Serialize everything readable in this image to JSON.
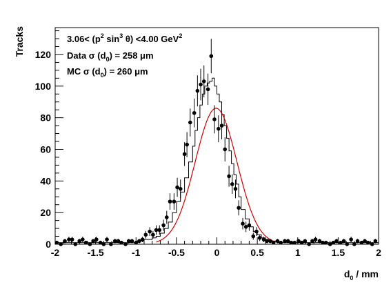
{
  "chart_data": {
    "type": "scatter",
    "xlabel": "d₀ / mm",
    "ylabel": "Tracks",
    "xlim": [
      -2,
      2
    ],
    "ylim": [
      0,
      137
    ],
    "x_ticks": [
      -2,
      -1.5,
      -1,
      -0.5,
      0,
      0.5,
      1,
      1.5,
      2
    ],
    "y_ticks": [
      0,
      20,
      40,
      60,
      80,
      100,
      120
    ],
    "annotations": [
      {
        "prefix": "3.06< (p",
        "sup1": "2",
        "mid": " sin",
        "sup2": "3",
        "suffix": " θ) <4.00 GeV",
        "sup3": "2"
      },
      {
        "prefix": "Data σ (d",
        "sub": "0",
        "suffix": ") = 258  μm"
      },
      {
        "prefix": "MC σ (d",
        "sub": "0",
        "suffix": ") = 260  μm"
      }
    ],
    "series": [
      {
        "role": "data points with error bars",
        "color": "#000000",
        "x": [
          -1.98,
          -1.93,
          -1.88,
          -1.83,
          -1.79,
          -1.75,
          -1.7,
          -1.66,
          -1.62,
          -1.57,
          -1.53,
          -1.49,
          -1.44,
          -1.4,
          -1.36,
          -1.31,
          -1.26,
          -1.22,
          -1.18,
          -1.13,
          -1.09,
          -1.05,
          -1.0,
          -0.96,
          -0.92,
          -0.88,
          -0.83,
          -0.79,
          -0.75,
          -0.71,
          -0.66,
          -0.62,
          -0.58,
          -0.53,
          -0.49,
          -0.45,
          -0.4,
          -0.37,
          -0.33,
          -0.28,
          -0.24,
          -0.2,
          -0.16,
          -0.11,
          -0.07,
          -0.03,
          0.02,
          0.06,
          0.1,
          0.15,
          0.19,
          0.23,
          0.27,
          0.32,
          0.36,
          0.4,
          0.45,
          0.49,
          0.53,
          0.58,
          0.62,
          0.66,
          0.7,
          0.75,
          0.79,
          0.84,
          0.88,
          0.92,
          0.96,
          1.01,
          1.05,
          1.09,
          1.14,
          1.18,
          1.22,
          1.27,
          1.31,
          1.35,
          1.4,
          1.44,
          1.48,
          1.53,
          1.57,
          1.61,
          1.66,
          1.7,
          1.74,
          1.79,
          1.83,
          1.87,
          1.92,
          1.96
        ],
        "y": [
          1,
          0,
          2,
          3,
          3,
          0,
          2,
          3,
          1,
          0,
          2,
          3,
          1,
          0,
          3,
          0,
          2,
          2,
          1,
          0,
          2,
          2,
          1,
          2,
          3,
          6,
          8,
          6,
          9,
          9,
          12,
          17,
          27,
          27,
          36,
          35,
          57,
          63,
          77,
          83,
          97,
          101,
          103,
          98,
          119,
          79,
          73,
          75,
          60,
          43,
          38,
          35,
          23,
          13,
          11,
          12,
          5,
          8,
          4,
          3,
          2,
          2,
          1,
          2,
          1,
          2,
          2,
          1,
          1,
          2,
          1,
          2,
          0,
          2,
          3,
          2,
          1,
          1,
          0,
          1,
          2,
          1,
          2,
          0,
          3,
          0,
          2,
          1,
          2,
          1,
          0,
          2
        ],
        "yerr": [
          1,
          0,
          1.4,
          1.7,
          1.7,
          0,
          1.4,
          1.7,
          1,
          0,
          1.4,
          1.7,
          1,
          0,
          1.7,
          0,
          1.4,
          1.4,
          1,
          0,
          1.4,
          1.4,
          1,
          1.4,
          1.7,
          2.4,
          2.8,
          2.4,
          3,
          3,
          3.5,
          4.1,
          5.2,
          5.2,
          6,
          5.9,
          7.5,
          7.9,
          8.8,
          9.1,
          9.8,
          10,
          10.1,
          9.9,
          10.9,
          8.9,
          8.5,
          8.7,
          7.7,
          6.6,
          6.2,
          5.9,
          4.8,
          3.6,
          3.3,
          3.5,
          2.2,
          2.8,
          2,
          1.7,
          1.4,
          1.4,
          1,
          1.4,
          1,
          1.4,
          1.4,
          1,
          1,
          1.4,
          1,
          1.4,
          0,
          1.4,
          1.7,
          1.4,
          1,
          1,
          0,
          1,
          1.4,
          1,
          1.4,
          0,
          1.7,
          0,
          1.4,
          1,
          1.4,
          1,
          0,
          1.4
        ]
      },
      {
        "role": "MC histogram",
        "color": "#000000",
        "bin_edges": [
          -2.0,
          -1.75,
          -1.5,
          -1.25,
          -1.1,
          -1.0,
          -0.9,
          -0.8,
          -0.75,
          -0.7,
          -0.65,
          -0.6,
          -0.55,
          -0.5,
          -0.45,
          -0.4,
          -0.35,
          -0.3,
          -0.27,
          -0.24,
          -0.21,
          -0.18,
          -0.15,
          -0.12,
          -0.09,
          -0.06,
          -0.03,
          0.0,
          0.03,
          0.06,
          0.09,
          0.12,
          0.15,
          0.18,
          0.21,
          0.24,
          0.27,
          0.3,
          0.35,
          0.4,
          0.45,
          0.5,
          0.55,
          0.6,
          0.65,
          0.7,
          0.75,
          0.8,
          0.9,
          1.0,
          1.25,
          1.5,
          1.75,
          2.0
        ],
        "values": [
          1,
          1,
          1,
          1,
          1,
          2,
          3,
          4,
          5,
          7,
          10,
          14,
          20,
          27,
          33,
          42,
          52,
          62,
          72,
          80,
          88,
          95,
          100,
          102,
          103,
          105,
          100,
          95,
          90,
          82,
          75,
          67,
          59,
          51,
          44,
          38,
          30,
          22,
          16,
          11,
          8,
          6,
          4,
          3,
          2,
          2,
          1,
          1,
          1,
          1,
          1,
          1,
          1
        ]
      },
      {
        "role": "Gaussian fit curve",
        "color": "#cc0000",
        "amplitude": 86,
        "mean": -0.01,
        "sigma": 0.258,
        "x_range": [
          -0.75,
          0.73
        ]
      }
    ]
  }
}
